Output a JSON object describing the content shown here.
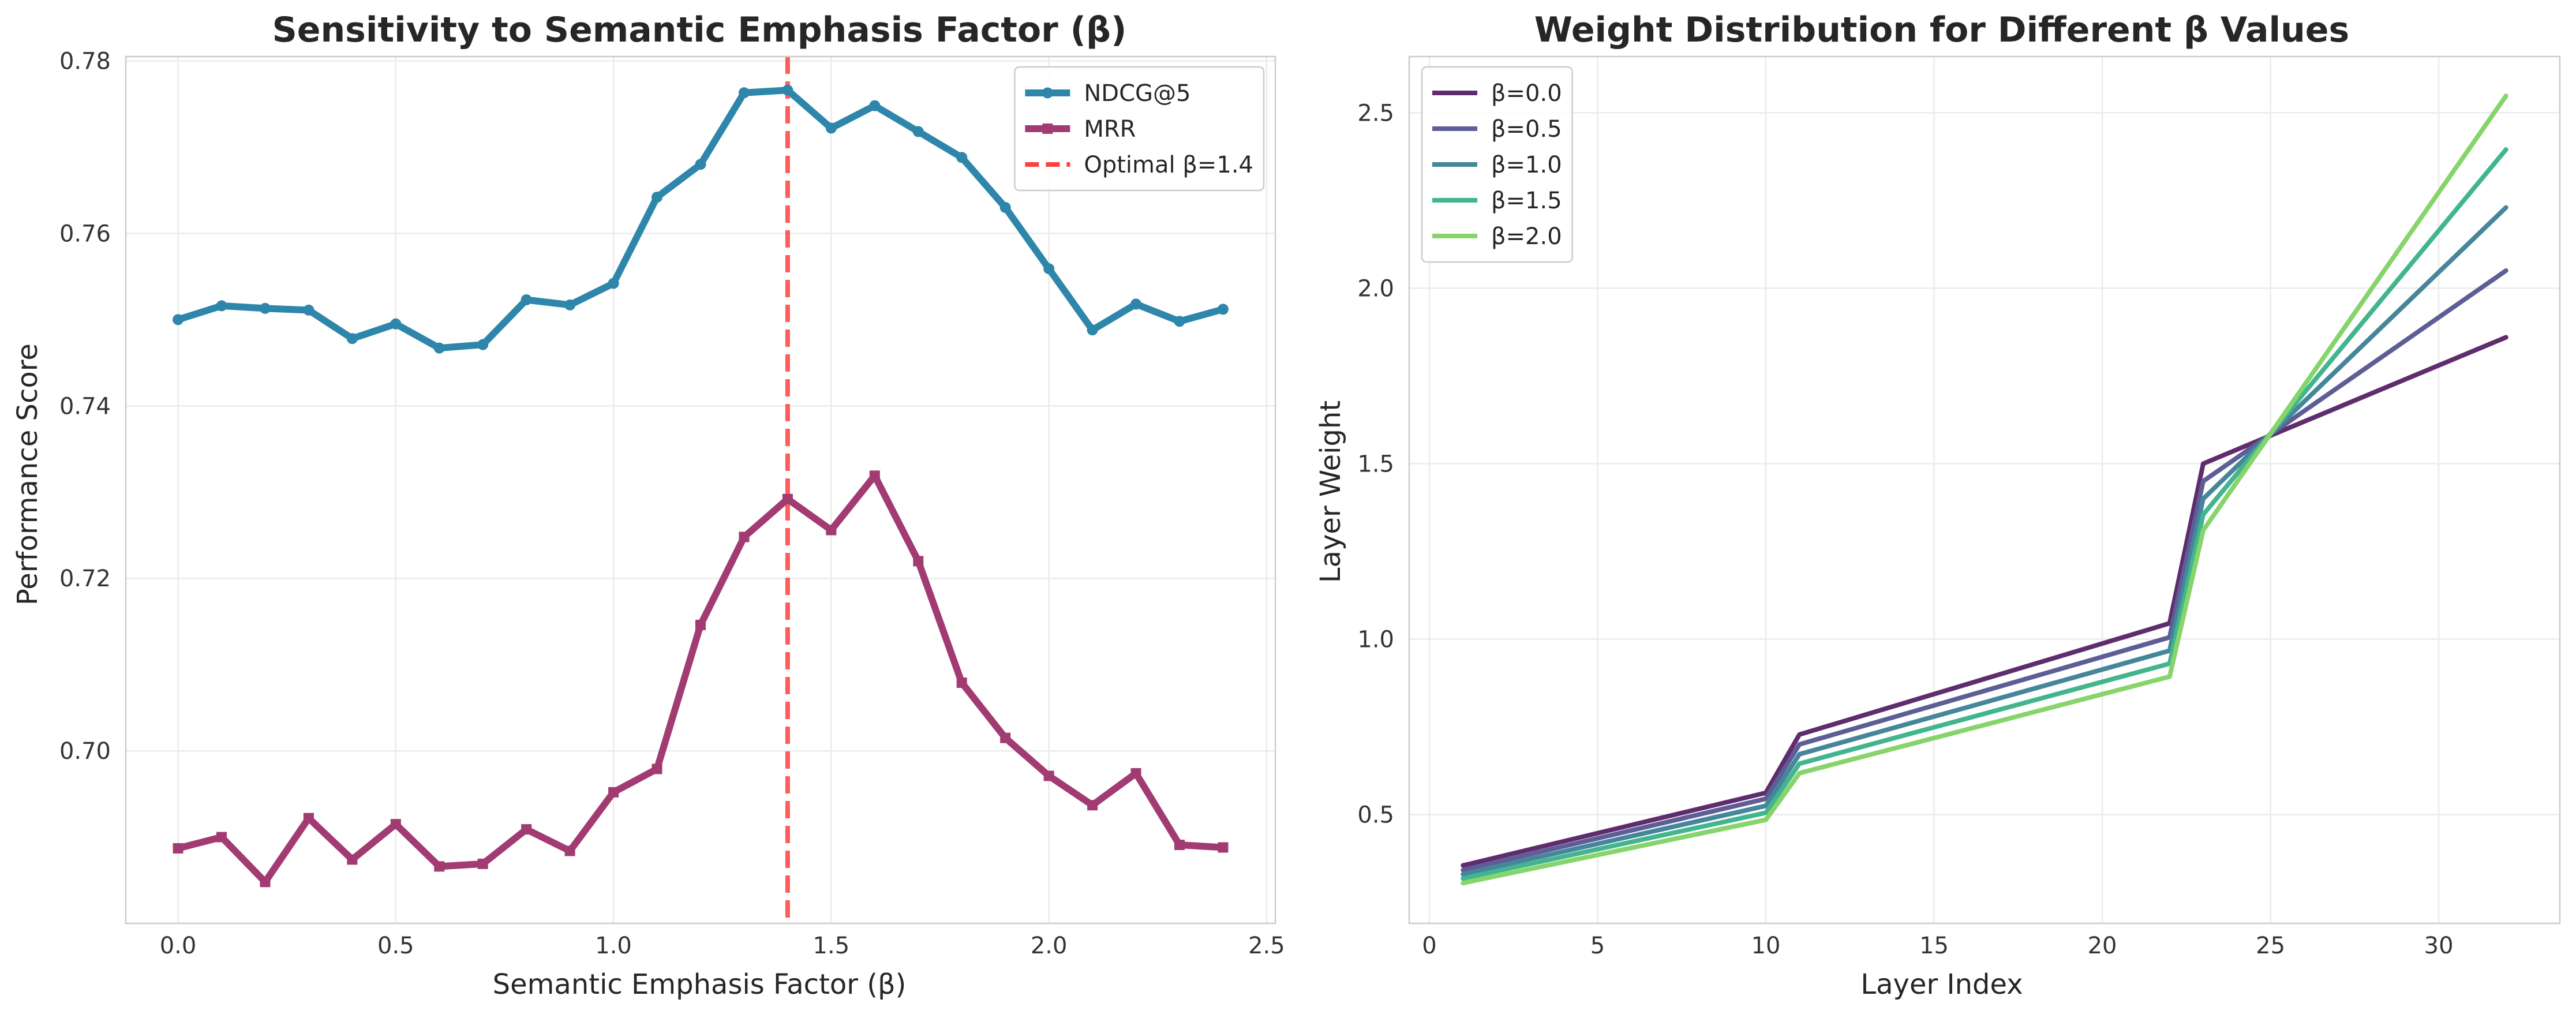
{
  "chart_data": [
    {
      "type": "line",
      "title": "Sensitivity to Semantic Emphasis Factor (β)",
      "xlabel": "Semantic Emphasis Factor (β)",
      "ylabel": "Performance Score",
      "xlim": [
        -0.12,
        2.52
      ],
      "ylim": [
        0.68,
        0.7805
      ],
      "xticks": [
        0.0,
        0.5,
        1.0,
        1.5,
        2.0,
        2.5
      ],
      "xtick_labels": [
        "0.0",
        "0.5",
        "1.0",
        "1.5",
        "2.0",
        "2.5"
      ],
      "yticks": [
        0.7,
        0.72,
        0.74,
        0.76,
        0.78
      ],
      "ytick_labels": [
        "0.70",
        "0.72",
        "0.74",
        "0.76",
        "0.78"
      ],
      "grid": true,
      "legend_position": "top-right",
      "x": [
        0.0,
        0.1,
        0.2,
        0.3,
        0.4,
        0.5,
        0.6,
        0.7,
        0.8,
        0.9,
        1.0,
        1.1,
        1.2,
        1.3,
        1.4,
        1.5,
        1.6,
        1.7,
        1.8,
        1.9,
        2.0,
        2.1,
        2.2,
        2.3,
        2.4
      ],
      "series": [
        {
          "name": "NDCG@5",
          "color": "#2e86ab",
          "marker": "circle",
          "values": [
            0.75,
            0.7516,
            0.7513,
            0.7511,
            0.7478,
            0.7495,
            0.7467,
            0.7471,
            0.7523,
            0.7517,
            0.7542,
            0.7642,
            0.768,
            0.7763,
            0.7766,
            0.7722,
            0.7748,
            0.7718,
            0.7688,
            0.763,
            0.7559,
            0.7488,
            0.7518,
            0.7498,
            0.7512
          ]
        },
        {
          "name": "MRR",
          "color": "#a23b72",
          "marker": "square",
          "values": [
            0.6887,
            0.69,
            0.6848,
            0.6922,
            0.6874,
            0.6915,
            0.6866,
            0.6869,
            0.6909,
            0.6884,
            0.6952,
            0.6979,
            0.7146,
            0.7248,
            0.7292,
            0.7256,
            0.7319,
            0.722,
            0.7079,
            0.7015,
            0.6971,
            0.6937,
            0.6974,
            0.6891,
            0.6888
          ]
        }
      ],
      "reference_line": {
        "name": "Optimal β=1.4",
        "x": 1.4,
        "color": "#ff4040",
        "style": "dashed"
      }
    },
    {
      "type": "line",
      "title": "Weight Distribution for Different β Values",
      "xlabel": "Layer Index",
      "ylabel": "Layer Weight",
      "xlim": [
        -0.6,
        33.6
      ],
      "ylim": [
        0.19,
        2.66
      ],
      "xticks": [
        0,
        5,
        10,
        15,
        20,
        25,
        30
      ],
      "xtick_labels": [
        "0",
        "5",
        "10",
        "15",
        "20",
        "25",
        "30"
      ],
      "yticks": [
        0.5,
        1.0,
        1.5,
        2.0,
        2.5
      ],
      "ytick_labels": [
        "0.5",
        "1.0",
        "1.5",
        "2.0",
        "2.5"
      ],
      "grid": true,
      "legend_position": "top-left",
      "series": [
        {
          "name": "β=0.0",
          "color": "#5f2c6d",
          "points": [
            [
              1,
              0.355
            ],
            [
              10,
              0.562
            ],
            [
              11,
              0.728
            ],
            [
              22,
              1.045
            ],
            [
              23,
              1.5
            ],
            [
              32,
              1.86
            ]
          ]
        },
        {
          "name": "β=0.5",
          "color": "#5e5e96",
          "points": [
            [
              1,
              0.342
            ],
            [
              10,
              0.545
            ],
            [
              11,
              0.7
            ],
            [
              22,
              1.005
            ],
            [
              23,
              1.45
            ],
            [
              32,
              2.05
            ]
          ]
        },
        {
          "name": "β=1.0",
          "color": "#45869a",
          "points": [
            [
              1,
              0.33
            ],
            [
              10,
              0.525
            ],
            [
              11,
              0.672
            ],
            [
              22,
              0.967
            ],
            [
              23,
              1.4
            ],
            [
              32,
              2.23
            ]
          ]
        },
        {
          "name": "β=1.5",
          "color": "#42b58e",
          "points": [
            [
              1,
              0.318
            ],
            [
              10,
              0.505
            ],
            [
              11,
              0.645
            ],
            [
              22,
              0.93
            ],
            [
              23,
              1.355
            ],
            [
              32,
              2.395
            ]
          ]
        },
        {
          "name": "β=2.0",
          "color": "#86d46b",
          "points": [
            [
              1,
              0.305
            ],
            [
              10,
              0.485
            ],
            [
              11,
              0.618
            ],
            [
              22,
              0.893
            ],
            [
              23,
              1.31
            ],
            [
              32,
              2.548
            ]
          ]
        }
      ]
    }
  ]
}
